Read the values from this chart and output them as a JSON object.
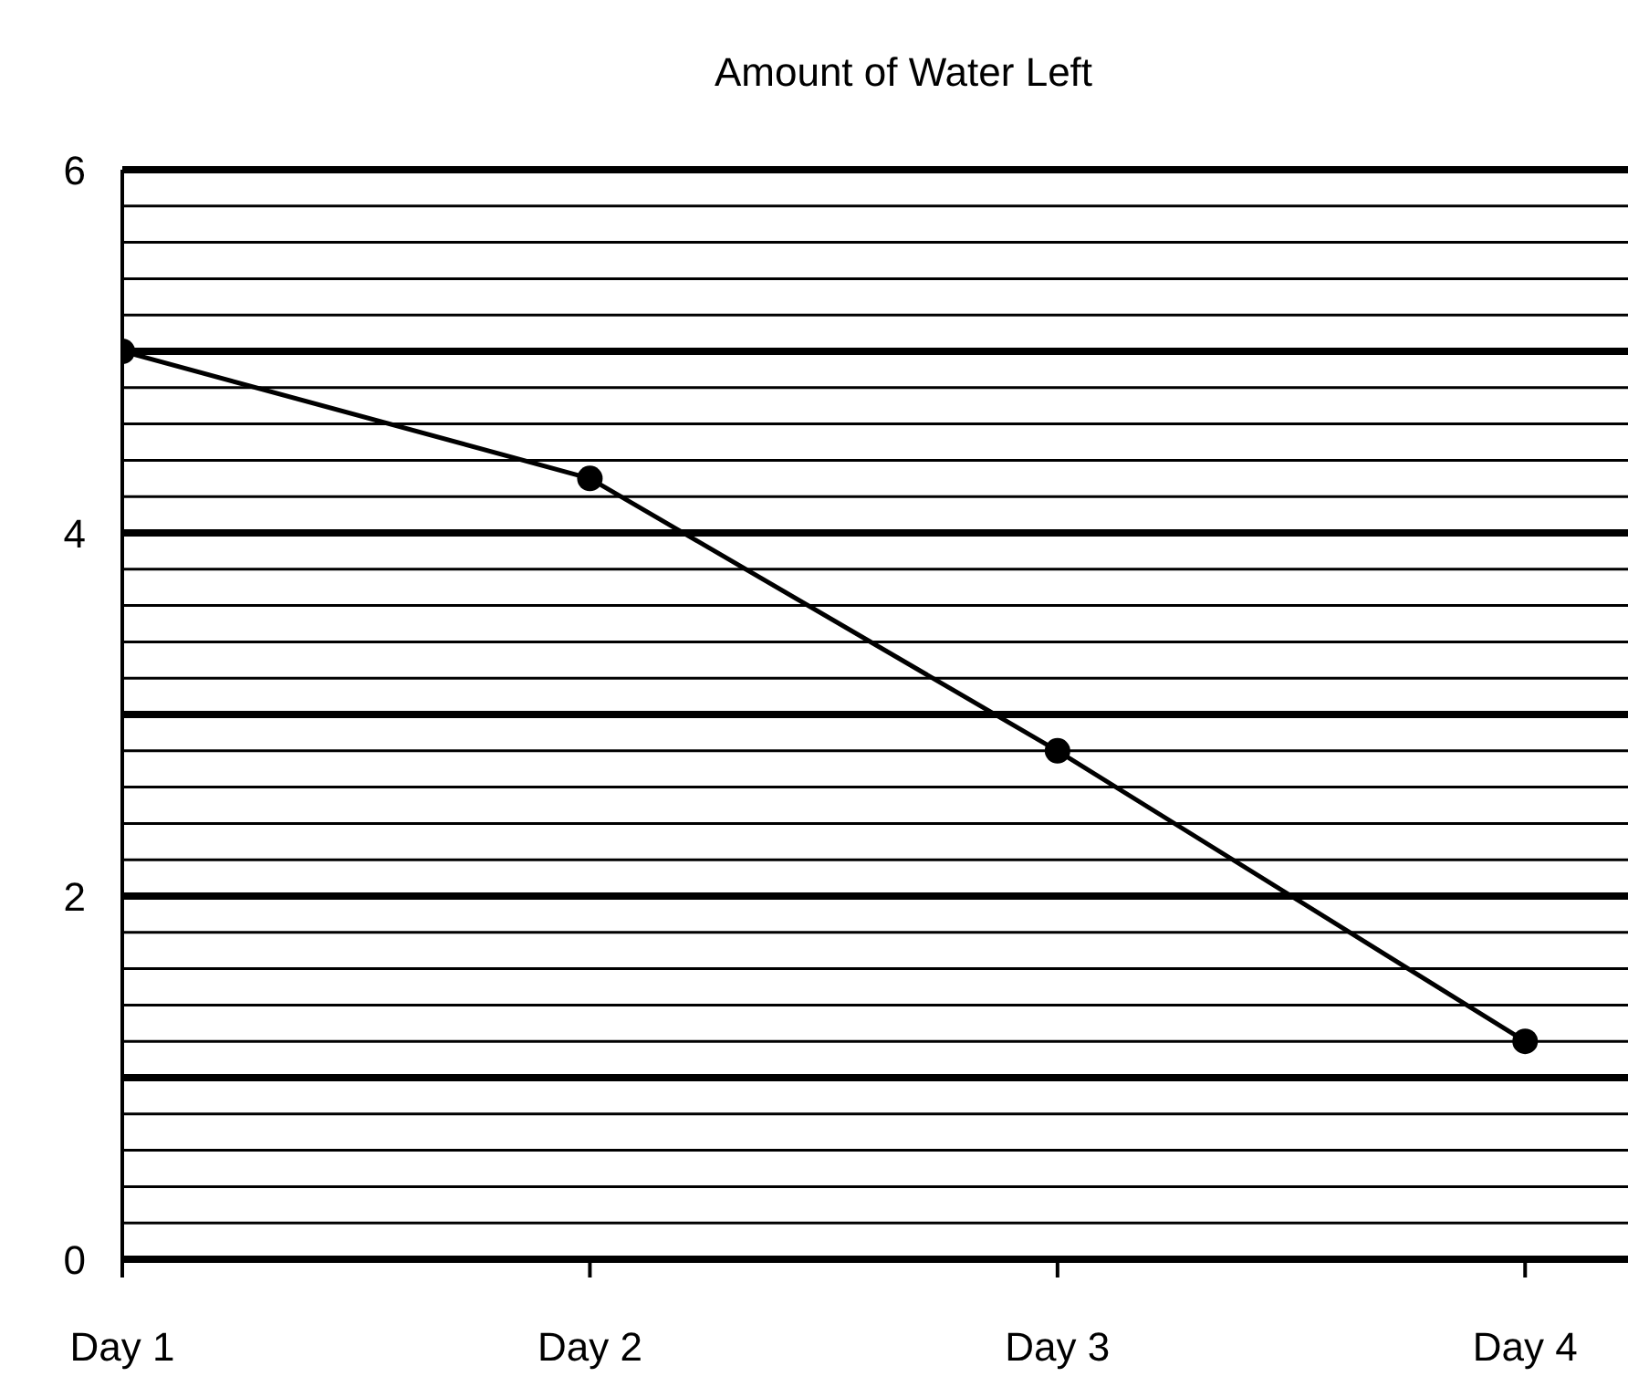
{
  "chart_data": {
    "type": "line",
    "title": "Amount of Water Left",
    "categories": [
      "Day 1",
      "Day 2",
      "Day 3",
      "Day 4"
    ],
    "values": [
      5.0,
      4.3,
      2.8,
      1.2
    ],
    "color": "#000000",
    "marker": "circle",
    "ylim": [
      0,
      6
    ],
    "yticks": [
      0,
      {
        "value": 0.2,
        "label": null
      },
      {
        "value": 0.4,
        "label": null
      },
      {
        "value": 0.6,
        "label": null
      },
      {
        "value": 0.8,
        "label": null
      },
      {
        "value": 1,
        "label": null
      },
      {
        "value": 1.2,
        "label": null
      },
      {
        "value": 1.4,
        "label": null
      },
      {
        "value": 1.6,
        "label": null
      },
      {
        "value": 1.8,
        "label": null
      },
      2,
      {
        "value": 2.2,
        "label": null
      },
      {
        "value": 2.4,
        "label": null
      },
      {
        "value": 2.6,
        "label": null
      },
      {
        "value": 2.8,
        "label": null
      },
      {
        "value": 3,
        "label": null
      },
      {
        "value": 3.2,
        "label": null
      },
      {
        "value": 3.4,
        "label": null
      },
      {
        "value": 3.6,
        "label": null
      },
      {
        "value": 3.8,
        "label": null
      },
      4,
      {
        "value": 4.2,
        "label": null
      },
      {
        "value": 4.4,
        "label": null
      },
      {
        "value": 4.6,
        "label": null
      },
      {
        "value": 4.8,
        "label": null
      },
      {
        "value": 5,
        "label": null
      },
      {
        "value": 5.2,
        "label": null
      },
      {
        "value": 5.4,
        "label": null
      },
      {
        "value": 5.6,
        "label": null
      },
      {
        "value": 5.8,
        "label": null
      },
      6
    ],
    "grid": "y"
  }
}
